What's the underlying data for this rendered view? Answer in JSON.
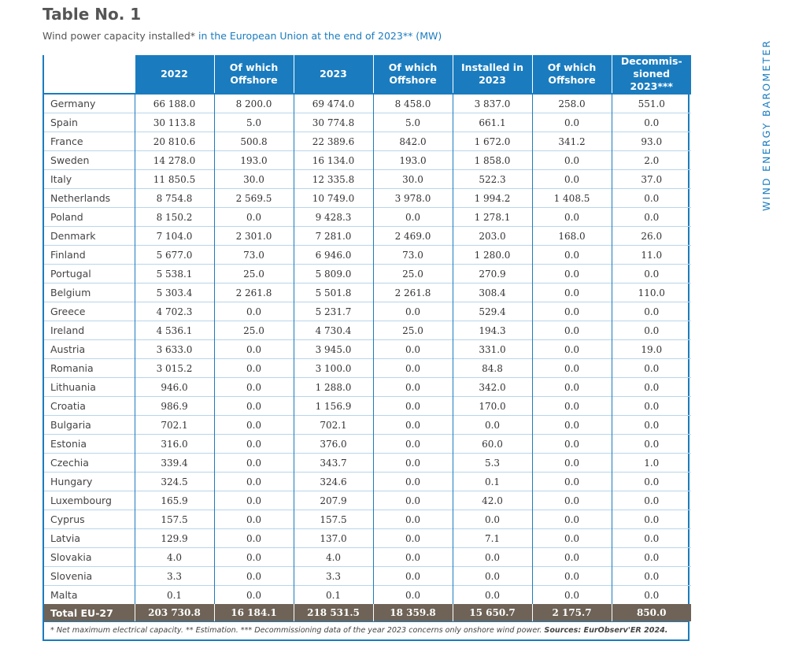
{
  "title": "Table No. 1",
  "subtitle": {
    "prefix": "Wind power capacity installed*",
    "highlight": " in the European Union at the end of 2023** (MW)"
  },
  "side_label": "WIND ENERGY BAROMETER",
  "columns": [
    "2022",
    "Of which Offshore",
    "2023",
    "Of which Offshore",
    "Installed in 2023",
    "Of which Offshore",
    "Decommis-sioned 2023***"
  ],
  "rows": [
    [
      "Germany",
      "66 188.0",
      "8 200.0",
      "69 474.0",
      "8 458.0",
      "3 837.0",
      "258.0",
      "551.0"
    ],
    [
      "Spain",
      "30 113.8",
      "5.0",
      "30 774.8",
      "5.0",
      "661.1",
      "0.0",
      "0.0"
    ],
    [
      "France",
      "20 810.6",
      "500.8",
      "22 389.6",
      "842.0",
      "1 672.0",
      "341.2",
      "93.0"
    ],
    [
      "Sweden",
      "14 278.0",
      "193.0",
      "16 134.0",
      "193.0",
      "1 858.0",
      "0.0",
      "2.0"
    ],
    [
      "Italy",
      "11 850.5",
      "30.0",
      "12 335.8",
      "30.0",
      "522.3",
      "0.0",
      "37.0"
    ],
    [
      "Netherlands",
      "8 754.8",
      "2 569.5",
      "10 749.0",
      "3 978.0",
      "1 994.2",
      "1 408.5",
      "0.0"
    ],
    [
      "Poland",
      "8 150.2",
      "0.0",
      "9 428.3",
      "0.0",
      "1 278.1",
      "0.0",
      "0.0"
    ],
    [
      "Denmark",
      "7 104.0",
      "2 301.0",
      "7 281.0",
      "2 469.0",
      "203.0",
      "168.0",
      "26.0"
    ],
    [
      "Finland",
      "5 677.0",
      "73.0",
      "6 946.0",
      "73.0",
      "1 280.0",
      "0.0",
      "11.0"
    ],
    [
      "Portugal",
      "5 538.1",
      "25.0",
      "5 809.0",
      "25.0",
      "270.9",
      "0.0",
      "0.0"
    ],
    [
      "Belgium",
      "5 303.4",
      "2 261.8",
      "5 501.8",
      "2 261.8",
      "308.4",
      "0.0",
      "110.0"
    ],
    [
      "Greece",
      "4 702.3",
      "0.0",
      "5 231.7",
      "0.0",
      "529.4",
      "0.0",
      "0.0"
    ],
    [
      "Ireland",
      "4 536.1",
      "25.0",
      "4 730.4",
      "25.0",
      "194.3",
      "0.0",
      "0.0"
    ],
    [
      "Austria",
      "3 633.0",
      "0.0",
      "3 945.0",
      "0.0",
      "331.0",
      "0.0",
      "19.0"
    ],
    [
      "Romania",
      "3 015.2",
      "0.0",
      "3 100.0",
      "0.0",
      "84.8",
      "0.0",
      "0.0"
    ],
    [
      "Lithuania",
      "946.0",
      "0.0",
      "1 288.0",
      "0.0",
      "342.0",
      "0.0",
      "0.0"
    ],
    [
      "Croatia",
      "986.9",
      "0.0",
      "1 156.9",
      "0.0",
      "170.0",
      "0.0",
      "0.0"
    ],
    [
      "Bulgaria",
      "702.1",
      "0.0",
      "702.1",
      "0.0",
      "0.0",
      "0.0",
      "0.0"
    ],
    [
      "Estonia",
      "316.0",
      "0.0",
      "376.0",
      "0.0",
      "60.0",
      "0.0",
      "0.0"
    ],
    [
      "Czechia",
      "339.4",
      "0.0",
      "343.7",
      "0.0",
      "5.3",
      "0.0",
      "1.0"
    ],
    [
      "Hungary",
      "324.5",
      "0.0",
      "324.6",
      "0.0",
      "0.1",
      "0.0",
      "0.0"
    ],
    [
      "Luxembourg",
      "165.9",
      "0.0",
      "207.9",
      "0.0",
      "42.0",
      "0.0",
      "0.0"
    ],
    [
      "Cyprus",
      "157.5",
      "0.0",
      "157.5",
      "0.0",
      "0.0",
      "0.0",
      "0.0"
    ],
    [
      "Latvia",
      "129.9",
      "0.0",
      "137.0",
      "0.0",
      "7.1",
      "0.0",
      "0.0"
    ],
    [
      "Slovakia",
      "4.0",
      "0.0",
      "4.0",
      "0.0",
      "0.0",
      "0.0",
      "0.0"
    ],
    [
      "Slovenia",
      "3.3",
      "0.0",
      "3.3",
      "0.0",
      "0.0",
      "0.0",
      "0.0"
    ],
    [
      "Malta",
      "0.1",
      "0.0",
      "0.1",
      "0.0",
      "0.0",
      "0.0",
      "0.0"
    ]
  ],
  "total": [
    "Total EU-27",
    "203 730.8",
    "16 184.1",
    "218 531.5",
    "18 359.8",
    "15 650.7",
    "2 175.7",
    "850.0"
  ],
  "footnote": {
    "text": "* Net maximum electrical capacity. ** Estimation. *** Decommissioning data of the year 2023 concerns only onshore wind power. ",
    "sources": "Sources: EurObserv'ER 2024."
  },
  "colors": {
    "accent": "#1a7cbf",
    "total_row": "#6e6356",
    "title": "#555555"
  }
}
